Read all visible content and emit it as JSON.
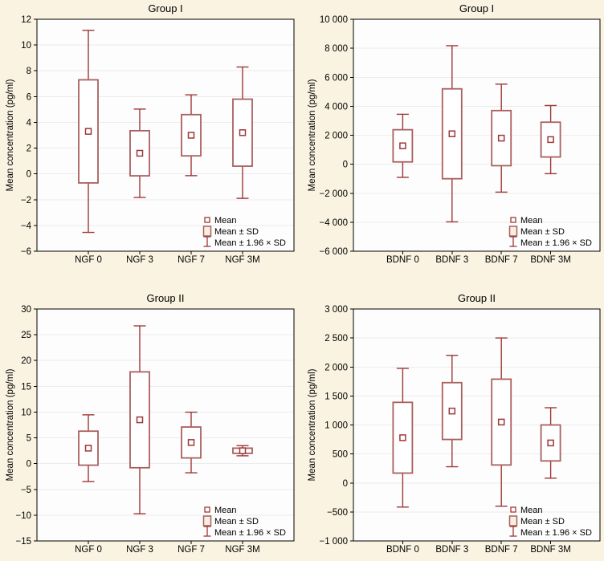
{
  "style": {
    "background": "#faf3e1",
    "plot_background": "#fdfdfd",
    "grid_color": "#ececec",
    "frame_color": "#000000",
    "box_color": "#aa5f5f",
    "whisker_color": "#9e3838",
    "mean_marker_color": "#9e3838",
    "legend_sd_fill": "#f9efdf",
    "text_color": "#000000"
  },
  "chart_data": [
    {
      "id": "group1-ngf",
      "position": "top-left",
      "type": "box",
      "title": "Group I",
      "ylabel": "Mean concentration (pg/ml)",
      "xlabel": "",
      "ylim": [
        -6,
        12
      ],
      "ytick_step": 2,
      "ytick_labels": [
        "12",
        "10",
        "8",
        "6",
        "4",
        "2",
        "0",
        "−2",
        "−4",
        "−6"
      ],
      "grid": "horizontal",
      "categories": [
        "NGF 0",
        "NGF 3",
        "NGF 7",
        "NGF 3M"
      ],
      "series": [
        {
          "name": "mean",
          "values": [
            3.3,
            1.6,
            3.0,
            3.2
          ]
        },
        {
          "name": "sd",
          "values": [
            4.0,
            1.75,
            1.6,
            2.6
          ]
        }
      ],
      "box_rule": "mean ± SD",
      "whisker_rule": "mean ± 1.96 × SD",
      "legend": [
        "Mean",
        "Mean ± SD",
        "Mean ± 1.96 × SD"
      ],
      "legend_position": "bottom-right"
    },
    {
      "id": "group1-bdnf",
      "position": "top-right",
      "type": "box",
      "title": "Group I",
      "ylabel": "Mean concentration (pg/ml)",
      "xlabel": "",
      "ylim": [
        -6000,
        10000
      ],
      "ytick_step": 2000,
      "ytick_labels": [
        "10 000",
        "8 000",
        "6 000",
        "4 000",
        "2 000",
        "0",
        "−2 000",
        "−4 000",
        "−6 000"
      ],
      "grid": "horizontal",
      "categories": [
        "BDNF 0",
        "BDNF 3",
        "BDNF 7",
        "BDNF 3M"
      ],
      "series": [
        {
          "name": "mean",
          "values": [
            1270,
            2100,
            1800,
            1700
          ]
        },
        {
          "name": "sd",
          "values": [
            1110,
            3100,
            1900,
            1200
          ]
        }
      ],
      "box_rule": "mean ± SD",
      "whisker_rule": "mean ± 1.96 × SD",
      "legend": [
        "Mean",
        "Mean ± SD",
        "Mean ± 1.96 × SD"
      ],
      "legend_position": "bottom-right"
    },
    {
      "id": "group2-ngf",
      "position": "bottom-left",
      "type": "box",
      "title": "Group II",
      "ylabel": "Mean concentration (pg/ml)",
      "xlabel": "",
      "ylim": [
        -15,
        30
      ],
      "ytick_step": 5,
      "ytick_labels": [
        "30",
        "25",
        "20",
        "15",
        "10",
        "5",
        "0",
        "−5",
        "−10",
        "−15"
      ],
      "grid": "horizontal",
      "categories": [
        "NGF 0",
        "NGF 3",
        "NGF 7",
        "NGF 3M"
      ],
      "series": [
        {
          "name": "mean",
          "values": [
            3.0,
            8.5,
            4.1,
            2.5
          ]
        },
        {
          "name": "sd",
          "values": [
            3.3,
            9.3,
            3.0,
            0.5
          ]
        }
      ],
      "box_rule": "mean ± SD",
      "whisker_rule": "mean ± 1.96 × SD",
      "legend": [
        "Mean",
        "Mean ± SD",
        "Mean ± 1.96 × SD"
      ],
      "legend_position": "bottom-right"
    },
    {
      "id": "group2-bdnf",
      "position": "bottom-right",
      "type": "box",
      "title": "Group II",
      "ylabel": "Mean concentration (pg/ml)",
      "xlabel": "",
      "ylim": [
        -1000,
        3000
      ],
      "ytick_step": 500,
      "ytick_labels": [
        "3 000",
        "2 500",
        "2 000",
        "1 500",
        "1 000",
        "500",
        "0",
        "−500",
        "−1 000"
      ],
      "grid": "horizontal",
      "categories": [
        "BDNF 0",
        "BDNF 3",
        "BDNF 7",
        "BDNF 3M"
      ],
      "series": [
        {
          "name": "mean",
          "values": [
            780,
            1240,
            1050,
            690
          ]
        },
        {
          "name": "sd",
          "values": [
            610,
            490,
            740,
            310
          ]
        }
      ],
      "box_rule": "mean ± SD",
      "whisker_rule": "mean ± 1.96 × SD",
      "legend": [
        "Mean",
        "Mean ± SD",
        "Mean ± 1.96 × SD"
      ],
      "legend_position": "bottom-right"
    }
  ]
}
